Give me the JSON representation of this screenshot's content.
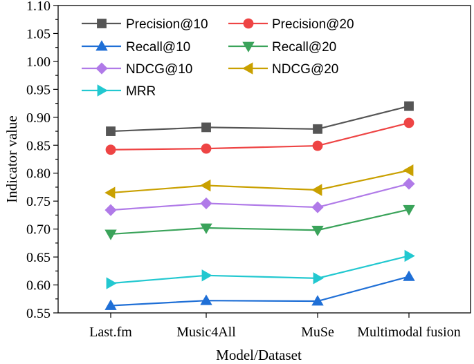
{
  "chart_data": {
    "type": "line",
    "title": "",
    "xlabel": "Model/Dataset",
    "ylabel": "Indicator value",
    "categories": [
      "Last.fm",
      "Music4All",
      "MuSe",
      "Multimodal fusion"
    ],
    "ylim": [
      0.55,
      1.1
    ],
    "yticks": [
      "0.55",
      "0.60",
      "0.65",
      "0.70",
      "0.75",
      "0.80",
      "0.85",
      "0.90",
      "0.95",
      "1.00",
      "1.05",
      "1.10"
    ],
    "grid": false,
    "legend_position": "top-left",
    "series": [
      {
        "name": "Precision@10",
        "color": "#555555",
        "marker": "square",
        "values": [
          0.875,
          0.882,
          0.879,
          0.92
        ]
      },
      {
        "name": "Precision@20",
        "color": "#ee4444",
        "marker": "circle",
        "values": [
          0.842,
          0.844,
          0.849,
          0.89
        ]
      },
      {
        "name": "Recall@10",
        "color": "#1f6fd6",
        "marker": "triangle-up",
        "values": [
          0.563,
          0.572,
          0.571,
          0.615
        ]
      },
      {
        "name": "Recall@20",
        "color": "#3aa35a",
        "marker": "triangle-down",
        "values": [
          0.691,
          0.702,
          0.698,
          0.735
        ]
      },
      {
        "name": "NDCG@10",
        "color": "#b07ae8",
        "marker": "diamond",
        "values": [
          0.734,
          0.746,
          0.739,
          0.781
        ]
      },
      {
        "name": "NDCG@20",
        "color": "#c9a000",
        "marker": "triangle-left",
        "values": [
          0.765,
          0.778,
          0.77,
          0.805
        ]
      },
      {
        "name": "MRR",
        "color": "#22c8d0",
        "marker": "triangle-right",
        "values": [
          0.603,
          0.617,
          0.612,
          0.652
        ]
      }
    ]
  }
}
